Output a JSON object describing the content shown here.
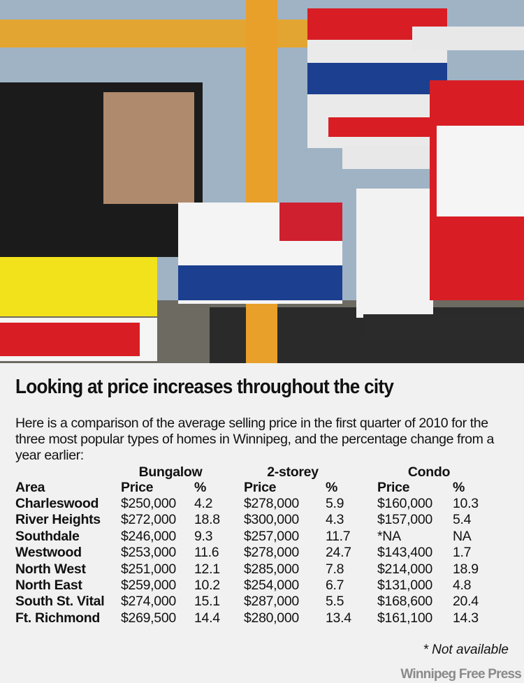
{
  "title": "Looking at price increases throughout the city",
  "intro": "Here is a comparison of the average selling price in the first quarter of 2010 for the three most popular types of homes in Winnipeg, and the percentage change from a year earlier:",
  "table": {
    "groups": [
      "Bungalow",
      "2-storey",
      "Condo"
    ],
    "columns": [
      "Area",
      "Price",
      "%",
      "Price",
      "%",
      "Price",
      "%"
    ],
    "rows": [
      [
        "Charleswood",
        "$250,000",
        "4.2",
        "$278,000",
        "5.9",
        "$160,000",
        "10.3"
      ],
      [
        "River Heights",
        "$272,000",
        "18.8",
        "$300,000",
        "4.3",
        "$157,000",
        "5.4"
      ],
      [
        "Southdale",
        "$246,000",
        "9.3",
        "$257,000",
        "11.7",
        "*NA",
        "NA"
      ],
      [
        "Westwood",
        "$253,000",
        "11.6",
        "$278,000",
        "24.7",
        "$143,400",
        "1.7"
      ],
      [
        "North West",
        "$251,000",
        "12.1",
        "$285,000",
        "7.8",
        "$214,000",
        "18.9"
      ],
      [
        "North East",
        "$259,000",
        "10.2",
        "$254,000",
        "6.7",
        "$131,000",
        "4.8"
      ],
      [
        "South St. Vital",
        "$274,000",
        "15.1",
        "$287,000",
        "5.5",
        "$168,600",
        "20.4"
      ],
      [
        "Ft. Richmond",
        "$269,500",
        "14.4",
        "$280,000",
        "13.4",
        "$161,100",
        "14.3"
      ]
    ]
  },
  "footnote": "* Not available",
  "credit": "Winnipeg Free Press"
}
